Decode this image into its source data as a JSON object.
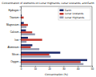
{
  "chart_data": {
    "type": "bar",
    "orientation": "horizontal",
    "title": "Concentration of elements on Lunar Highlands, Lunar Lowlands, and Earth",
    "xlabel": "Concentration (%)",
    "categories": [
      "Hydrogen",
      "Titanium",
      "Magnesium",
      "Calcium",
      "Iron",
      "Aluminium",
      "Silicon",
      "Oxygen"
    ],
    "series": [
      {
        "name": "Earth",
        "color": "#1c2a6b",
        "values": [
          0.14,
          0.6,
          2.1,
          3.6,
          5.0,
          8.1,
          27.7,
          46.6
        ]
      },
      {
        "name": "Lunar Lowlands",
        "color": "#c43a31",
        "values": [
          0.0,
          2.0,
          5.0,
          8.0,
          15.0,
          7.0,
          20.0,
          42.0
        ]
      },
      {
        "name": "Lunar Highlands",
        "color": "#9a9db3",
        "values": [
          0.0,
          0.3,
          4.0,
          10.0,
          4.0,
          13.0,
          21.0,
          44.0
        ]
      }
    ],
    "xlim": [
      0,
      50
    ],
    "xticks": [
      0,
      10,
      20,
      30,
      40,
      50
    ],
    "legend": "upper right",
    "grid": false
  }
}
